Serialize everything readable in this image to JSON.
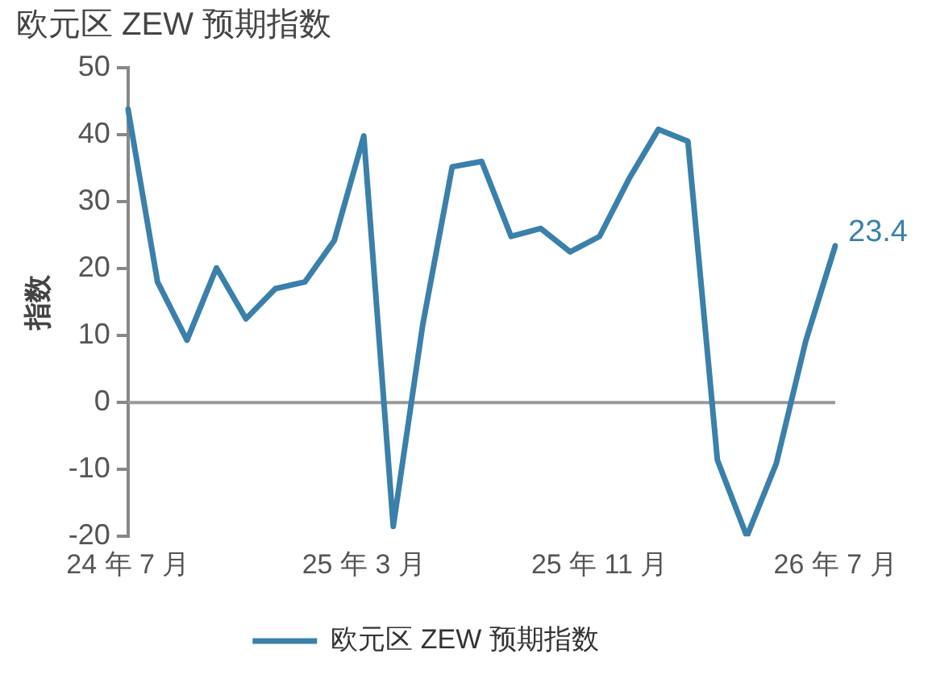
{
  "chart_data": {
    "type": "line",
    "title": "欧元区 ZEW 预期指数",
    "ylabel": "指数",
    "categories": [
      "24 年 7 月",
      null,
      null,
      null,
      null,
      null,
      null,
      null,
      "25 年 3 月",
      null,
      null,
      null,
      null,
      null,
      null,
      null,
      "25 年 11 月",
      null,
      null,
      null,
      null,
      null,
      null,
      null,
      "26 年 7 月"
    ],
    "series": [
      {
        "name": "欧元区 ZEW 预期指数",
        "color": "#3a80ab",
        "values": [
          43.8,
          18,
          9.3,
          20.1,
          12.5,
          17,
          18,
          24.2,
          39.8,
          -18.5,
          11.6,
          35.2,
          36,
          24.8,
          26,
          22.5,
          24.8,
          33.4,
          40.8,
          39,
          -8.6,
          -20,
          -9.1,
          9.2,
          23.4
        ],
        "value_labels": [
          null,
          null,
          null,
          null,
          null,
          null,
          null,
          null,
          null,
          null,
          null,
          null,
          null,
          null,
          null,
          null,
          null,
          null,
          null,
          null,
          null,
          null,
          null,
          null,
          "23.4"
        ]
      }
    ],
    "ref_lines": [
      {
        "axis": "y",
        "value": 0,
        "color": "#999999"
      }
    ],
    "ylim": [
      -20,
      50
    ],
    "yticks": [
      -20,
      -10,
      0,
      10,
      20,
      30,
      40,
      50
    ],
    "grid": false,
    "legend": "bottom",
    "marker": "none",
    "line_style": "solid"
  }
}
